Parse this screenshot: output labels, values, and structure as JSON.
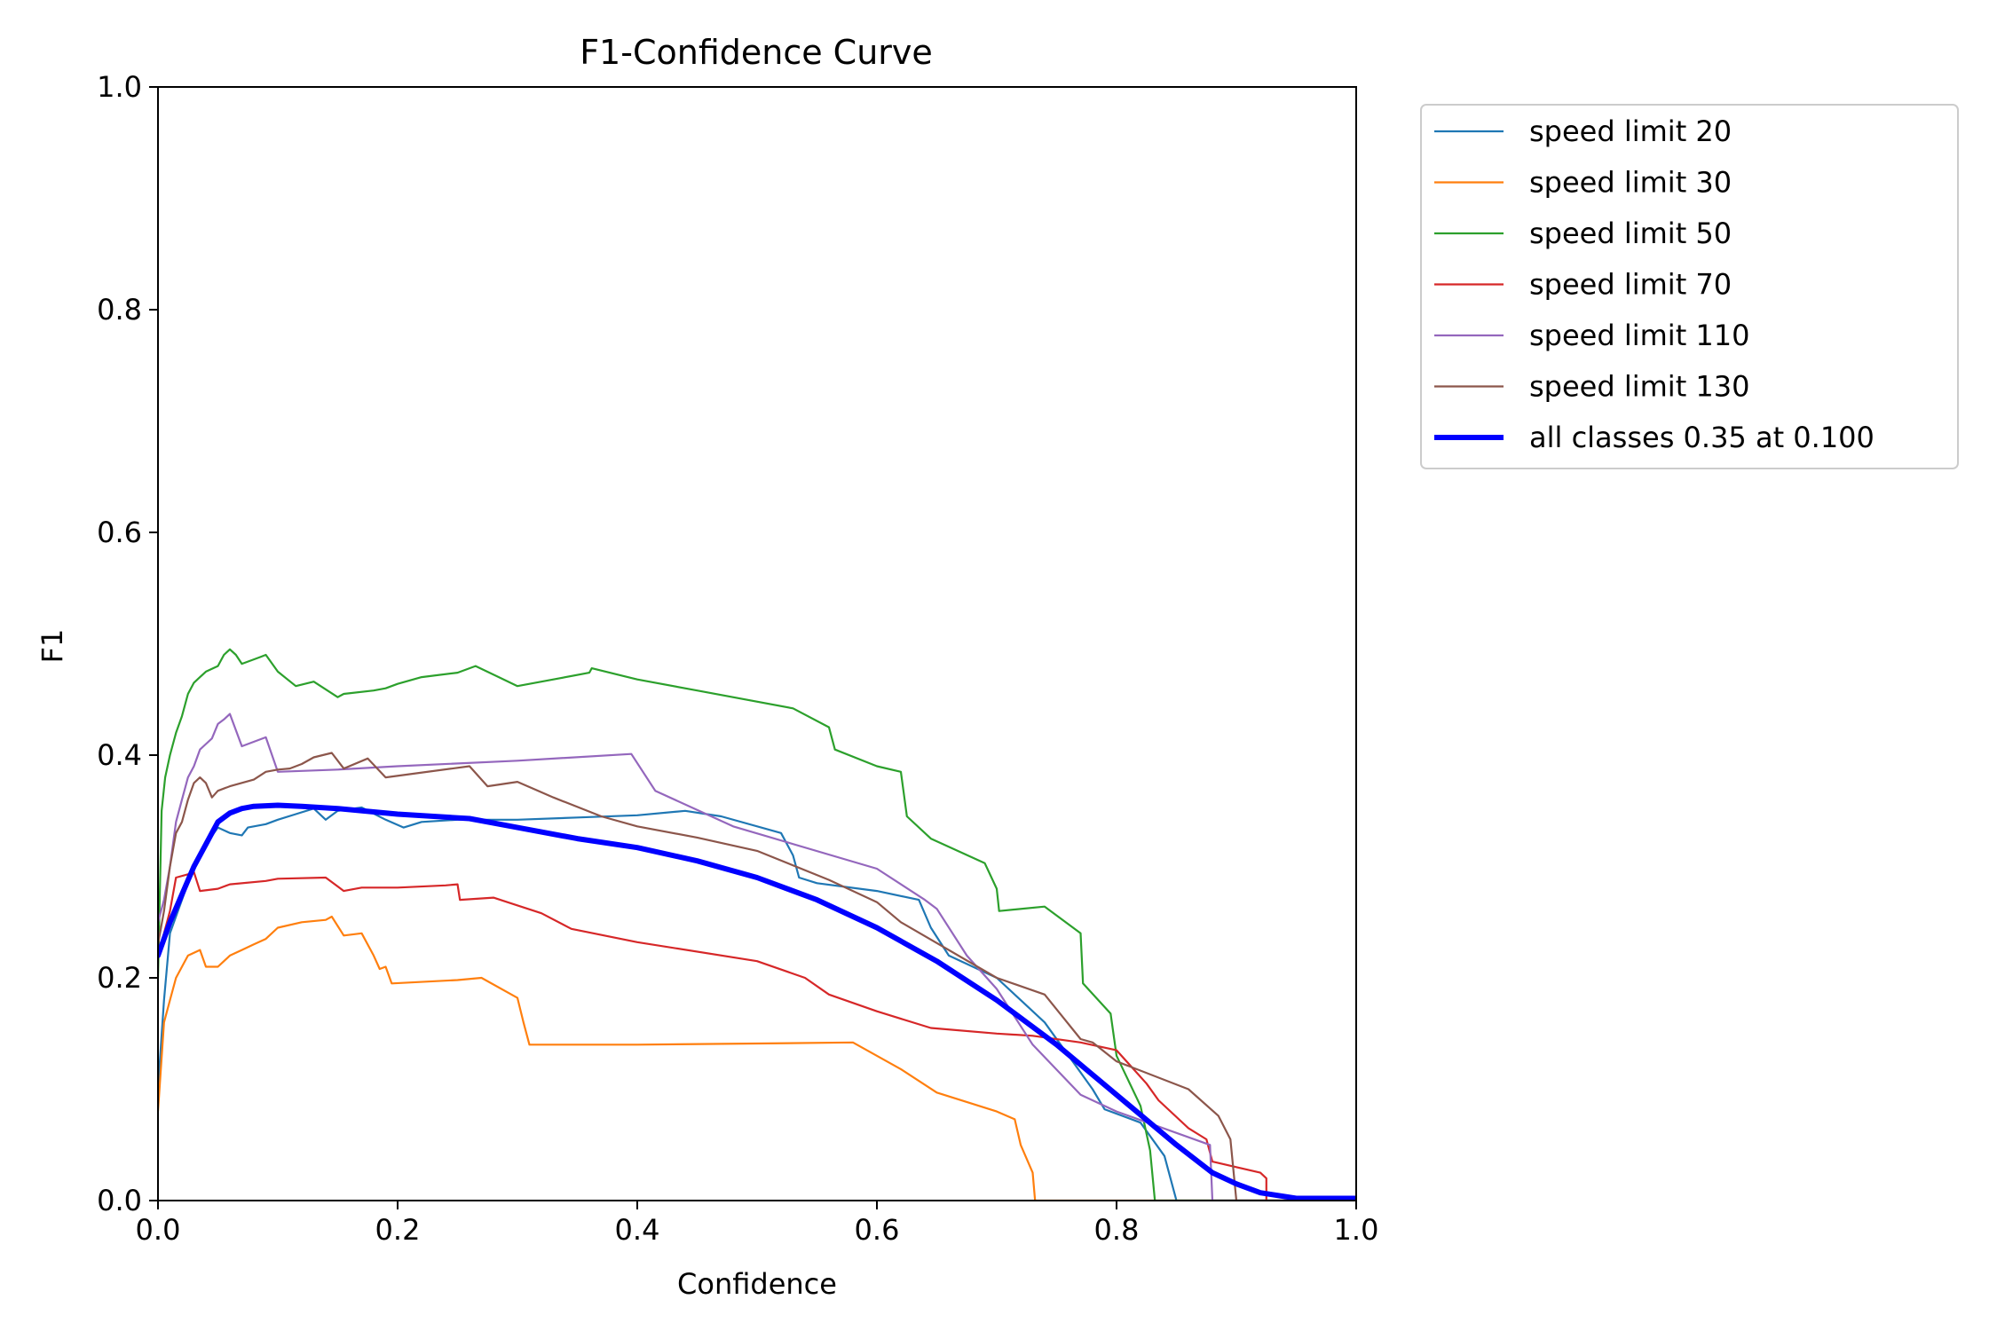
{
  "chart_data": {
    "type": "line",
    "title": "F1-Confidence Curve",
    "xlabel": "Confidence",
    "ylabel": "F1",
    "xlim": [
      0,
      1
    ],
    "ylim": [
      0,
      1
    ],
    "xticks": [
      "0.0",
      "0.2",
      "0.4",
      "0.6",
      "0.8",
      "1.0"
    ],
    "yticks": [
      "0.0",
      "0.2",
      "0.4",
      "0.6",
      "0.8",
      "1.0"
    ],
    "legend_position": "outside-top-right",
    "grid": false,
    "series": [
      {
        "name": "speed limit 20",
        "color": "#1f77b4",
        "points": [
          [
            0,
            0.1
          ],
          [
            0.005,
            0.18
          ],
          [
            0.01,
            0.24
          ],
          [
            0.02,
            0.27
          ],
          [
            0.03,
            0.3
          ],
          [
            0.04,
            0.32
          ],
          [
            0.05,
            0.335
          ],
          [
            0.06,
            0.33
          ],
          [
            0.07,
            0.328
          ],
          [
            0.075,
            0.335
          ],
          [
            0.09,
            0.338
          ],
          [
            0.1,
            0.342
          ],
          [
            0.115,
            0.347
          ],
          [
            0.13,
            0.352
          ],
          [
            0.14,
            0.342
          ],
          [
            0.15,
            0.35
          ],
          [
            0.17,
            0.353
          ],
          [
            0.19,
            0.342
          ],
          [
            0.205,
            0.335
          ],
          [
            0.22,
            0.34
          ],
          [
            0.25,
            0.342
          ],
          [
            0.3,
            0.342
          ],
          [
            0.35,
            0.344
          ],
          [
            0.4,
            0.346
          ],
          [
            0.44,
            0.35
          ],
          [
            0.47,
            0.345
          ],
          [
            0.52,
            0.33
          ],
          [
            0.53,
            0.31
          ],
          [
            0.535,
            0.29
          ],
          [
            0.55,
            0.285
          ],
          [
            0.6,
            0.278
          ],
          [
            0.635,
            0.27
          ],
          [
            0.645,
            0.245
          ],
          [
            0.66,
            0.22
          ],
          [
            0.7,
            0.2
          ],
          [
            0.72,
            0.18
          ],
          [
            0.74,
            0.16
          ],
          [
            0.76,
            0.13
          ],
          [
            0.78,
            0.1
          ],
          [
            0.79,
            0.082
          ],
          [
            0.82,
            0.07
          ],
          [
            0.84,
            0.04
          ],
          [
            0.85,
            0
          ],
          [
            1,
            0
          ]
        ]
      },
      {
        "name": "speed limit 30",
        "color": "#ff7f0e",
        "points": [
          [
            0,
            0.08
          ],
          [
            0.005,
            0.16
          ],
          [
            0.01,
            0.18
          ],
          [
            0.015,
            0.2
          ],
          [
            0.02,
            0.21
          ],
          [
            0.025,
            0.22
          ],
          [
            0.035,
            0.225
          ],
          [
            0.04,
            0.21
          ],
          [
            0.05,
            0.21
          ],
          [
            0.055,
            0.215
          ],
          [
            0.06,
            0.22
          ],
          [
            0.07,
            0.225
          ],
          [
            0.08,
            0.23
          ],
          [
            0.09,
            0.235
          ],
          [
            0.1,
            0.245
          ],
          [
            0.12,
            0.25
          ],
          [
            0.14,
            0.252
          ],
          [
            0.145,
            0.255
          ],
          [
            0.155,
            0.238
          ],
          [
            0.17,
            0.24
          ],
          [
            0.18,
            0.22
          ],
          [
            0.185,
            0.208
          ],
          [
            0.19,
            0.21
          ],
          [
            0.195,
            0.195
          ],
          [
            0.25,
            0.198
          ],
          [
            0.27,
            0.2
          ],
          [
            0.3,
            0.182
          ],
          [
            0.305,
            0.16
          ],
          [
            0.31,
            0.14
          ],
          [
            0.4,
            0.14
          ],
          [
            0.5,
            0.141
          ],
          [
            0.58,
            0.142
          ],
          [
            0.62,
            0.118
          ],
          [
            0.65,
            0.097
          ],
          [
            0.7,
            0.08
          ],
          [
            0.715,
            0.073
          ],
          [
            0.72,
            0.05
          ],
          [
            0.73,
            0.025
          ],
          [
            0.732,
            0
          ],
          [
            1,
            0
          ]
        ]
      },
      {
        "name": "speed limit 50",
        "color": "#2ca02c",
        "points": [
          [
            0,
            0.2
          ],
          [
            0.003,
            0.35
          ],
          [
            0.006,
            0.38
          ],
          [
            0.01,
            0.4
          ],
          [
            0.015,
            0.42
          ],
          [
            0.02,
            0.435
          ],
          [
            0.025,
            0.455
          ],
          [
            0.03,
            0.465
          ],
          [
            0.035,
            0.47
          ],
          [
            0.04,
            0.475
          ],
          [
            0.05,
            0.48
          ],
          [
            0.055,
            0.49
          ],
          [
            0.06,
            0.495
          ],
          [
            0.065,
            0.49
          ],
          [
            0.07,
            0.482
          ],
          [
            0.085,
            0.488
          ],
          [
            0.09,
            0.49
          ],
          [
            0.1,
            0.475
          ],
          [
            0.115,
            0.462
          ],
          [
            0.13,
            0.466
          ],
          [
            0.15,
            0.452
          ],
          [
            0.155,
            0.455
          ],
          [
            0.18,
            0.458
          ],
          [
            0.19,
            0.46
          ],
          [
            0.2,
            0.464
          ],
          [
            0.22,
            0.47
          ],
          [
            0.25,
            0.474
          ],
          [
            0.265,
            0.48
          ],
          [
            0.3,
            0.462
          ],
          [
            0.33,
            0.468
          ],
          [
            0.36,
            0.474
          ],
          [
            0.362,
            0.478
          ],
          [
            0.4,
            0.468
          ],
          [
            0.45,
            0.458
          ],
          [
            0.53,
            0.442
          ],
          [
            0.56,
            0.425
          ],
          [
            0.565,
            0.405
          ],
          [
            0.6,
            0.39
          ],
          [
            0.62,
            0.385
          ],
          [
            0.625,
            0.345
          ],
          [
            0.645,
            0.325
          ],
          [
            0.69,
            0.303
          ],
          [
            0.7,
            0.28
          ],
          [
            0.702,
            0.26
          ],
          [
            0.74,
            0.264
          ],
          [
            0.77,
            0.24
          ],
          [
            0.772,
            0.195
          ],
          [
            0.795,
            0.168
          ],
          [
            0.8,
            0.13
          ],
          [
            0.82,
            0.085
          ],
          [
            0.828,
            0.045
          ],
          [
            0.832,
            0
          ],
          [
            1,
            0
          ]
        ]
      },
      {
        "name": "speed limit 70",
        "color": "#d62728",
        "points": [
          [
            0,
            0.22
          ],
          [
            0.005,
            0.24
          ],
          [
            0.01,
            0.26
          ],
          [
            0.015,
            0.29
          ],
          [
            0.025,
            0.293
          ],
          [
            0.03,
            0.295
          ],
          [
            0.035,
            0.278
          ],
          [
            0.05,
            0.28
          ],
          [
            0.06,
            0.284
          ],
          [
            0.09,
            0.287
          ],
          [
            0.1,
            0.289
          ],
          [
            0.14,
            0.29
          ],
          [
            0.155,
            0.278
          ],
          [
            0.17,
            0.281
          ],
          [
            0.2,
            0.281
          ],
          [
            0.24,
            0.283
          ],
          [
            0.25,
            0.284
          ],
          [
            0.252,
            0.27
          ],
          [
            0.28,
            0.272
          ],
          [
            0.32,
            0.258
          ],
          [
            0.345,
            0.244
          ],
          [
            0.4,
            0.232
          ],
          [
            0.5,
            0.215
          ],
          [
            0.54,
            0.2
          ],
          [
            0.56,
            0.185
          ],
          [
            0.6,
            0.17
          ],
          [
            0.645,
            0.155
          ],
          [
            0.7,
            0.15
          ],
          [
            0.73,
            0.148
          ],
          [
            0.77,
            0.142
          ],
          [
            0.8,
            0.135
          ],
          [
            0.825,
            0.105
          ],
          [
            0.835,
            0.09
          ],
          [
            0.86,
            0.065
          ],
          [
            0.875,
            0.055
          ],
          [
            0.88,
            0.035
          ],
          [
            0.92,
            0.025
          ],
          [
            0.925,
            0.02
          ],
          [
            0.925,
            0
          ]
        ]
      },
      {
        "name": "speed limit 110",
        "color": "#9467bd",
        "points": [
          [
            0,
            0.25
          ],
          [
            0.005,
            0.27
          ],
          [
            0.01,
            0.3
          ],
          [
            0.015,
            0.34
          ],
          [
            0.02,
            0.36
          ],
          [
            0.025,
            0.38
          ],
          [
            0.03,
            0.39
          ],
          [
            0.035,
            0.405
          ],
          [
            0.04,
            0.41
          ],
          [
            0.045,
            0.415
          ],
          [
            0.05,
            0.428
          ],
          [
            0.055,
            0.432
          ],
          [
            0.06,
            0.437
          ],
          [
            0.07,
            0.408
          ],
          [
            0.09,
            0.416
          ],
          [
            0.1,
            0.385
          ],
          [
            0.15,
            0.387
          ],
          [
            0.2,
            0.39
          ],
          [
            0.3,
            0.395
          ],
          [
            0.395,
            0.401
          ],
          [
            0.415,
            0.368
          ],
          [
            0.48,
            0.336
          ],
          [
            0.6,
            0.298
          ],
          [
            0.64,
            0.27
          ],
          [
            0.65,
            0.262
          ],
          [
            0.675,
            0.22
          ],
          [
            0.7,
            0.19
          ],
          [
            0.73,
            0.14
          ],
          [
            0.77,
            0.095
          ],
          [
            0.8,
            0.08
          ],
          [
            0.878,
            0.05
          ],
          [
            0.88,
            0
          ],
          [
            1,
            0
          ]
        ]
      },
      {
        "name": "speed limit 130",
        "color": "#8c564b",
        "points": [
          [
            0,
            0.23
          ],
          [
            0.005,
            0.26
          ],
          [
            0.01,
            0.3
          ],
          [
            0.015,
            0.33
          ],
          [
            0.02,
            0.34
          ],
          [
            0.025,
            0.36
          ],
          [
            0.03,
            0.375
          ],
          [
            0.035,
            0.38
          ],
          [
            0.04,
            0.375
          ],
          [
            0.045,
            0.362
          ],
          [
            0.05,
            0.368
          ],
          [
            0.06,
            0.372
          ],
          [
            0.08,
            0.378
          ],
          [
            0.09,
            0.385
          ],
          [
            0.1,
            0.387
          ],
          [
            0.11,
            0.388
          ],
          [
            0.12,
            0.392
          ],
          [
            0.13,
            0.398
          ],
          [
            0.145,
            0.402
          ],
          [
            0.155,
            0.388
          ],
          [
            0.175,
            0.397
          ],
          [
            0.19,
            0.38
          ],
          [
            0.26,
            0.39
          ],
          [
            0.275,
            0.372
          ],
          [
            0.3,
            0.376
          ],
          [
            0.33,
            0.362
          ],
          [
            0.37,
            0.345
          ],
          [
            0.4,
            0.336
          ],
          [
            0.45,
            0.326
          ],
          [
            0.5,
            0.314
          ],
          [
            0.56,
            0.288
          ],
          [
            0.6,
            0.268
          ],
          [
            0.62,
            0.25
          ],
          [
            0.7,
            0.2
          ],
          [
            0.74,
            0.185
          ],
          [
            0.77,
            0.145
          ],
          [
            0.78,
            0.142
          ],
          [
            0.8,
            0.125
          ],
          [
            0.86,
            0.1
          ],
          [
            0.885,
            0.076
          ],
          [
            0.895,
            0.055
          ],
          [
            0.9,
            0
          ],
          [
            1,
            0
          ]
        ]
      },
      {
        "name": "all classes 0.35 at 0.100",
        "color": "#0000ff",
        "width": 6,
        "points": [
          [
            0,
            0.22
          ],
          [
            0.01,
            0.25
          ],
          [
            0.02,
            0.275
          ],
          [
            0.03,
            0.3
          ],
          [
            0.04,
            0.32
          ],
          [
            0.05,
            0.34
          ],
          [
            0.06,
            0.348
          ],
          [
            0.07,
            0.352
          ],
          [
            0.08,
            0.354
          ],
          [
            0.1,
            0.355
          ],
          [
            0.12,
            0.354
          ],
          [
            0.15,
            0.352
          ],
          [
            0.2,
            0.347
          ],
          [
            0.26,
            0.343
          ],
          [
            0.3,
            0.335
          ],
          [
            0.35,
            0.325
          ],
          [
            0.4,
            0.317
          ],
          [
            0.45,
            0.305
          ],
          [
            0.5,
            0.29
          ],
          [
            0.55,
            0.27
          ],
          [
            0.6,
            0.245
          ],
          [
            0.65,
            0.215
          ],
          [
            0.7,
            0.18
          ],
          [
            0.75,
            0.14
          ],
          [
            0.8,
            0.095
          ],
          [
            0.85,
            0.05
          ],
          [
            0.88,
            0.025
          ],
          [
            0.9,
            0.015
          ],
          [
            0.92,
            0.007
          ],
          [
            0.95,
            0.002
          ],
          [
            1,
            0.002
          ]
        ]
      }
    ]
  }
}
